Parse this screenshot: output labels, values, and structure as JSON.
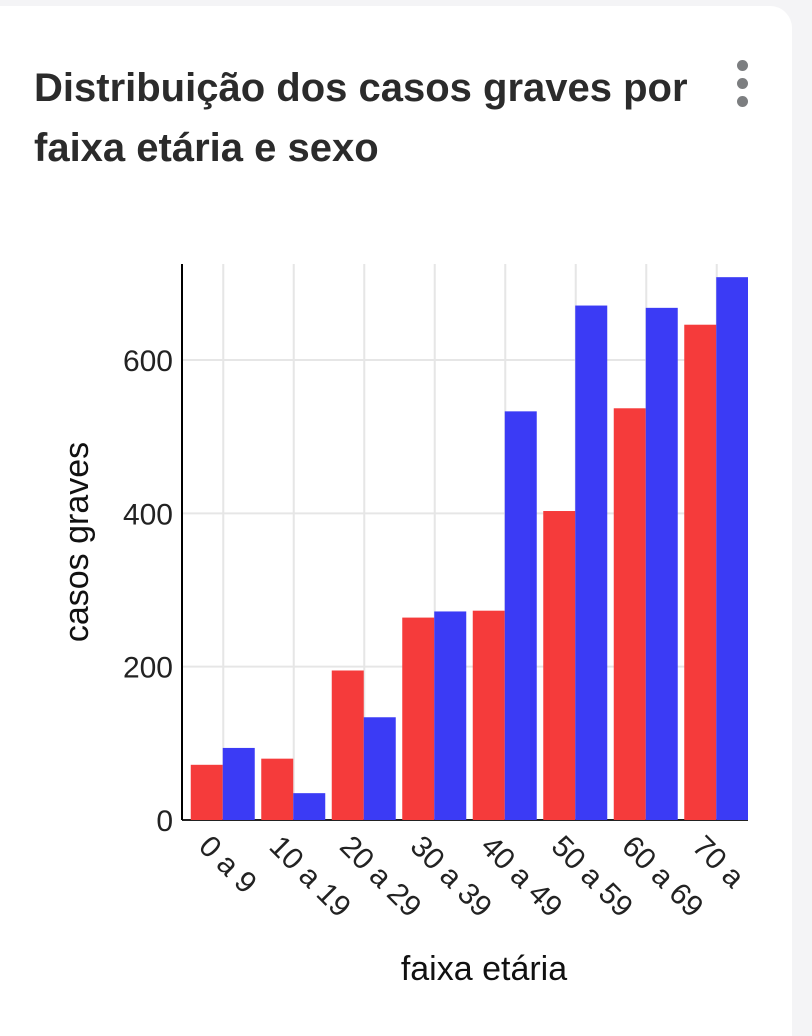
{
  "card": {
    "title": "Distribuição dos casos graves por faixa etária e sexo",
    "menu_icon": "more-vertical-icon"
  },
  "chart_data": {
    "type": "bar",
    "title": "Distribuição dos casos graves por faixa etária e sexo",
    "xlabel": "faixa etária",
    "ylabel": "casos graves",
    "categories": [
      "0 a 9",
      "10 a 19",
      "20 a 29",
      "30 a 39",
      "40 a 49",
      "50 a 59",
      "60 a 69",
      "70 a"
    ],
    "series": [
      {
        "color": "#f53b3b",
        "values": [
          72,
          80,
          195,
          264,
          273,
          403,
          537,
          646
        ]
      },
      {
        "color": "#3b3bf5",
        "values": [
          94,
          35,
          134,
          272,
          533,
          671,
          668,
          708
        ]
      }
    ],
    "yticks": [
      0,
      200,
      400,
      600
    ],
    "ylim": [
      0,
      710
    ],
    "grid": true,
    "legend": "none"
  }
}
